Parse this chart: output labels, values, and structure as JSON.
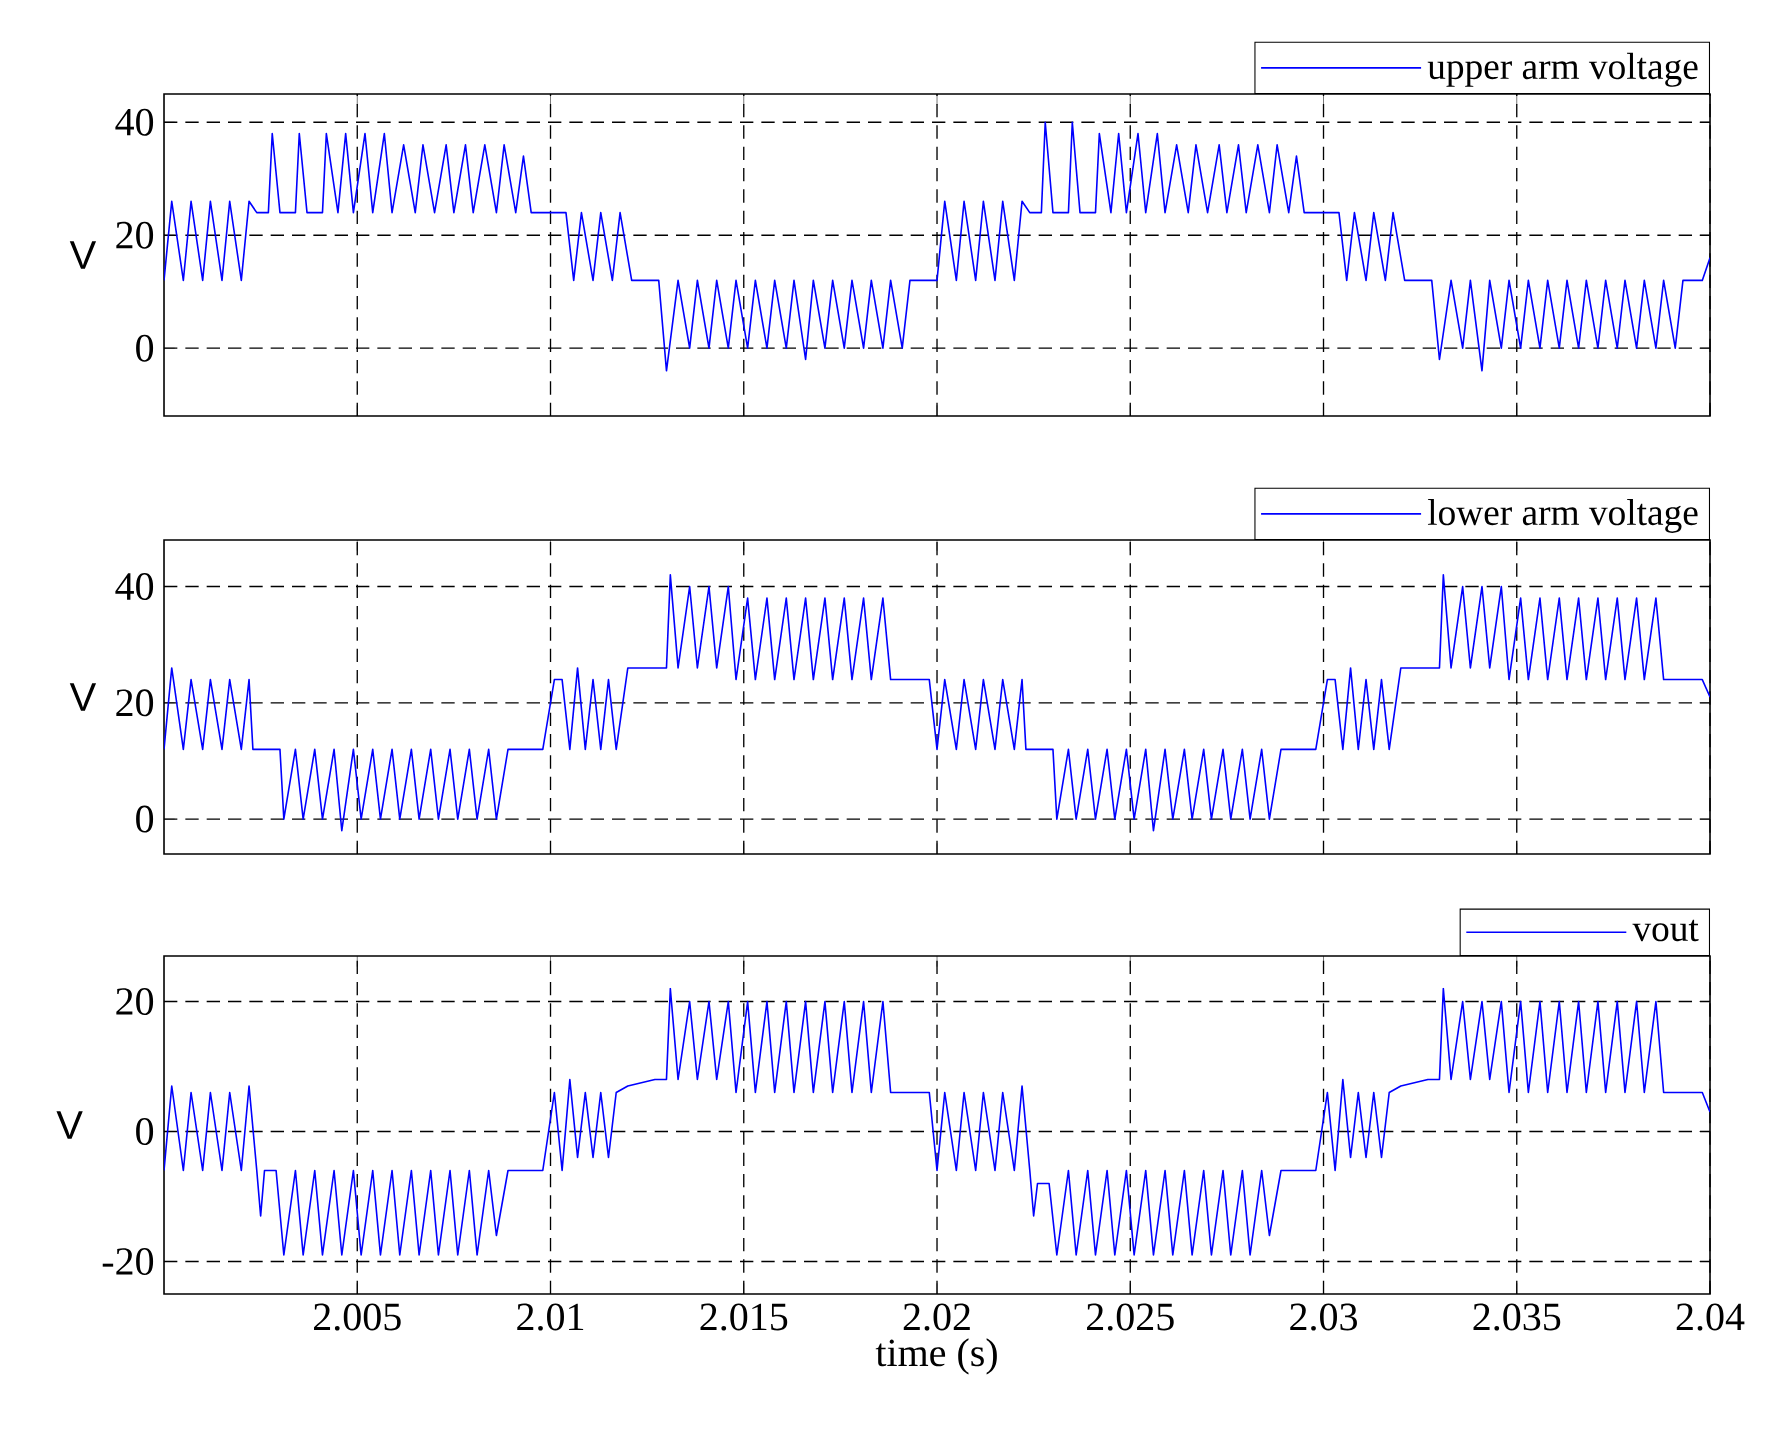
{
  "chart_data": [
    {
      "type": "line",
      "ylabel": "V",
      "grid": true,
      "legend": "top right",
      "tick_labels": "y",
      "xlim": [
        2.0,
        2.04
      ],
      "ylim": [
        -12,
        45
      ],
      "xticks": [
        2.005,
        2.01,
        2.015,
        2.02,
        2.025,
        2.03,
        2.035,
        2.04
      ],
      "yticks": [
        0,
        20,
        40
      ],
      "series": [
        {
          "name": "upper arm voltage",
          "color": "#0000ff",
          "x": [
            2.0,
            2.0002,
            2.0005,
            2.0007,
            2.001,
            2.0012,
            2.0015,
            2.0017,
            2.002,
            2.0022,
            2.0024,
            2.0027,
            2.0028,
            2.003,
            2.0034,
            2.0035,
            2.0037,
            2.0041,
            2.0042,
            2.0045,
            2.0047,
            2.0049,
            2.0052,
            2.0054,
            2.0057,
            2.0059,
            2.0062,
            2.0065,
            2.0067,
            2.007,
            2.0073,
            2.0075,
            2.0078,
            2.008,
            2.0083,
            2.0086,
            2.0088,
            2.0091,
            2.0093,
            2.0095,
            2.0097,
            2.0104,
            2.0106,
            2.0108,
            2.0111,
            2.0113,
            2.0116,
            2.0118,
            2.0121,
            2.0123,
            2.0128,
            2.013,
            2.0133,
            2.0136,
            2.0138,
            2.0141,
            2.0143,
            2.0146,
            2.0148,
            2.0151,
            2.0153,
            2.0156,
            2.0158,
            2.0161,
            2.0163,
            2.0166,
            2.0168,
            2.0171,
            2.0173,
            2.0176,
            2.0178,
            2.0181,
            2.0183,
            2.0186,
            2.0188,
            2.0191,
            2.0193,
            2.0198,
            2.02,
            2.0202,
            2.0205,
            2.0207,
            2.021,
            2.0212,
            2.0215,
            2.0217,
            2.022,
            2.0222,
            2.0224,
            2.0227,
            2.0228,
            2.023,
            2.0234,
            2.0235,
            2.0237,
            2.0241,
            2.0242,
            2.0245,
            2.0247,
            2.0249,
            2.0252,
            2.0254,
            2.0257,
            2.0259,
            2.0262,
            2.0265,
            2.0267,
            2.027,
            2.0273,
            2.0275,
            2.0278,
            2.028,
            2.0283,
            2.0286,
            2.0288,
            2.0291,
            2.0293,
            2.0295,
            2.0297,
            2.0304,
            2.0306,
            2.0308,
            2.0311,
            2.0313,
            2.0316,
            2.0318,
            2.0321,
            2.0323,
            2.0328,
            2.033,
            2.0333,
            2.0336,
            2.0338,
            2.0341,
            2.0343,
            2.0346,
            2.0348,
            2.0351,
            2.0353,
            2.0356,
            2.0358,
            2.0361,
            2.0363,
            2.0366,
            2.0368,
            2.0371,
            2.0373,
            2.0376,
            2.0378,
            2.0381,
            2.0383,
            2.0386,
            2.0388,
            2.0391,
            2.0393,
            2.0398,
            2.04
          ],
          "values": [
            12,
            26,
            12,
            26,
            12,
            26,
            12,
            26,
            12,
            26,
            24,
            24,
            38,
            24,
            24,
            38,
            24,
            24,
            38,
            24,
            38,
            24,
            38,
            24,
            38,
            24,
            36,
            24,
            36,
            24,
            36,
            24,
            36,
            24,
            36,
            24,
            36,
            24,
            34,
            24,
            24,
            24,
            12,
            24,
            12,
            24,
            12,
            24,
            12,
            12,
            12,
            -4,
            12,
            0,
            12,
            0,
            12,
            0,
            12,
            0,
            12,
            0,
            12,
            0,
            12,
            -2,
            12,
            0,
            12,
            0,
            12,
            0,
            12,
            0,
            12,
            0,
            12,
            12,
            12,
            26,
            12,
            26,
            12,
            26,
            12,
            26,
            12,
            26,
            24,
            24,
            40,
            24,
            24,
            40,
            24,
            24,
            38,
            24,
            38,
            24,
            38,
            24,
            38,
            24,
            36,
            24,
            36,
            24,
            36,
            24,
            36,
            24,
            36,
            24,
            36,
            24,
            34,
            24,
            24,
            24,
            12,
            24,
            12,
            24,
            12,
            24,
            12,
            12,
            12,
            -2,
            12,
            0,
            12,
            -4,
            12,
            0,
            12,
            0,
            12,
            0,
            12,
            0,
            12,
            0,
            12,
            0,
            12,
            0,
            12,
            0,
            12,
            0,
            12,
            0,
            12,
            12,
            16
          ]
        }
      ]
    },
    {
      "type": "line",
      "ylabel": "V",
      "grid": true,
      "legend": "top right",
      "tick_labels": "y",
      "xlim": [
        2.0,
        2.04
      ],
      "ylim": [
        -6,
        48
      ],
      "xticks": [
        2.005,
        2.01,
        2.015,
        2.02,
        2.025,
        2.03,
        2.035,
        2.04
      ],
      "yticks": [
        0,
        20,
        40
      ],
      "series": [
        {
          "name": "lower arm voltage",
          "color": "#0000ff",
          "x": [
            2.0,
            2.0002,
            2.0005,
            2.0007,
            2.001,
            2.0012,
            2.0015,
            2.0017,
            2.002,
            2.0022,
            2.0023,
            2.003,
            2.0031,
            2.0034,
            2.0036,
            2.0039,
            2.0041,
            2.0044,
            2.0046,
            2.0049,
            2.0051,
            2.0054,
            2.0056,
            2.0059,
            2.0061,
            2.0064,
            2.0066,
            2.0069,
            2.0071,
            2.0074,
            2.0076,
            2.0079,
            2.0081,
            2.0084,
            2.0086,
            2.0089,
            2.0098,
            2.0101,
            2.0103,
            2.0105,
            2.0107,
            2.0109,
            2.0111,
            2.0113,
            2.0115,
            2.0117,
            2.012,
            2.0127,
            2.013,
            2.0131,
            2.0133,
            2.0136,
            2.0138,
            2.0141,
            2.0143,
            2.0146,
            2.0148,
            2.0151,
            2.0153,
            2.0156,
            2.0158,
            2.0161,
            2.0163,
            2.0166,
            2.0168,
            2.0171,
            2.0173,
            2.0176,
            2.0178,
            2.0181,
            2.0183,
            2.0186,
            2.0188,
            2.0191,
            2.0198,
            2.02,
            2.0202,
            2.0205,
            2.0207,
            2.021,
            2.0212,
            2.0215,
            2.0217,
            2.022,
            2.0222,
            2.0223,
            2.023,
            2.0231,
            2.0234,
            2.0236,
            2.0239,
            2.0241,
            2.0244,
            2.0246,
            2.0249,
            2.0251,
            2.0254,
            2.0256,
            2.0259,
            2.0261,
            2.0264,
            2.0266,
            2.0269,
            2.0271,
            2.0274,
            2.0276,
            2.0279,
            2.0281,
            2.0284,
            2.0286,
            2.0289,
            2.0298,
            2.0301,
            2.0303,
            2.0305,
            2.0307,
            2.0309,
            2.0311,
            2.0313,
            2.0315,
            2.0317,
            2.032,
            2.0327,
            2.033,
            2.0331,
            2.0333,
            2.0336,
            2.0338,
            2.0341,
            2.0343,
            2.0346,
            2.0348,
            2.0351,
            2.0353,
            2.0356,
            2.0358,
            2.0361,
            2.0363,
            2.0366,
            2.0368,
            2.0371,
            2.0373,
            2.0376,
            2.0378,
            2.0381,
            2.0383,
            2.0386,
            2.0388,
            2.0391,
            2.0398,
            2.04
          ],
          "values": [
            12,
            26,
            12,
            24,
            12,
            24,
            12,
            24,
            12,
            24,
            12,
            12,
            0,
            12,
            0,
            12,
            0,
            12,
            -2,
            12,
            0,
            12,
            0,
            12,
            0,
            12,
            0,
            12,
            0,
            12,
            0,
            12,
            0,
            12,
            0,
            12,
            12,
            24,
            24,
            12,
            26,
            12,
            24,
            12,
            24,
            12,
            26,
            26,
            26,
            42,
            26,
            40,
            26,
            40,
            26,
            40,
            24,
            38,
            24,
            38,
            24,
            38,
            24,
            38,
            24,
            38,
            24,
            38,
            24,
            38,
            24,
            38,
            24,
            24,
            24,
            12,
            24,
            12,
            24,
            12,
            24,
            12,
            24,
            12,
            24,
            12,
            12,
            0,
            12,
            0,
            12,
            0,
            12,
            0,
            12,
            0,
            12,
            -2,
            12,
            0,
            12,
            0,
            12,
            0,
            12,
            0,
            12,
            0,
            12,
            0,
            12,
            12,
            24,
            24,
            12,
            26,
            12,
            24,
            12,
            24,
            12,
            26,
            26,
            26,
            42,
            26,
            40,
            26,
            40,
            26,
            40,
            24,
            38,
            24,
            38,
            24,
            38,
            24,
            38,
            24,
            38,
            24,
            38,
            24,
            38,
            24,
            38,
            24,
            24,
            24,
            21
          ]
        }
      ]
    },
    {
      "type": "line",
      "ylabel": "V",
      "xlabel": "time (s)",
      "grid": true,
      "legend": "top right",
      "xlim": [
        2.0,
        2.04
      ],
      "ylim": [
        -25,
        27
      ],
      "xticks": [
        2.005,
        2.01,
        2.015,
        2.02,
        2.025,
        2.03,
        2.035,
        2.04
      ],
      "yticks": [
        -20,
        0,
        20
      ],
      "series": [
        {
          "name": "vout",
          "color": "#0000ff",
          "x": [
            2.0,
            2.0002,
            2.0005,
            2.0007,
            2.001,
            2.0012,
            2.0015,
            2.0017,
            2.002,
            2.0022,
            2.0024,
            2.0025,
            2.0026,
            2.0029,
            2.0031,
            2.0034,
            2.0036,
            2.0039,
            2.0041,
            2.0044,
            2.0046,
            2.0049,
            2.0051,
            2.0054,
            2.0056,
            2.0059,
            2.0061,
            2.0064,
            2.0066,
            2.0069,
            2.0071,
            2.0074,
            2.0076,
            2.0079,
            2.0081,
            2.0084,
            2.0086,
            2.0089,
            2.0098,
            2.0101,
            2.0103,
            2.0105,
            2.0107,
            2.0109,
            2.0111,
            2.0113,
            2.0115,
            2.0117,
            2.012,
            2.0127,
            2.013,
            2.0131,
            2.0133,
            2.0136,
            2.0138,
            2.0141,
            2.0143,
            2.0146,
            2.0148,
            2.0151,
            2.0153,
            2.0156,
            2.0158,
            2.0161,
            2.0163,
            2.0166,
            2.0168,
            2.0171,
            2.0173,
            2.0176,
            2.0178,
            2.0181,
            2.0183,
            2.0186,
            2.0188,
            2.0191,
            2.0198,
            2.02,
            2.0202,
            2.0205,
            2.0207,
            2.021,
            2.0212,
            2.0215,
            2.0217,
            2.022,
            2.0222,
            2.0224,
            2.0225,
            2.0226,
            2.0229,
            2.0231,
            2.0234,
            2.0236,
            2.0239,
            2.0241,
            2.0244,
            2.0246,
            2.0249,
            2.0251,
            2.0254,
            2.0256,
            2.0259,
            2.0261,
            2.0264,
            2.0266,
            2.0269,
            2.0271,
            2.0274,
            2.0276,
            2.0279,
            2.0281,
            2.0284,
            2.0286,
            2.0289,
            2.0298,
            2.0301,
            2.0303,
            2.0305,
            2.0307,
            2.0309,
            2.0311,
            2.0313,
            2.0315,
            2.0317,
            2.032,
            2.0327,
            2.033,
            2.0331,
            2.0333,
            2.0336,
            2.0338,
            2.0341,
            2.0343,
            2.0346,
            2.0348,
            2.0351,
            2.0353,
            2.0356,
            2.0358,
            2.0361,
            2.0363,
            2.0366,
            2.0368,
            2.0371,
            2.0373,
            2.0376,
            2.0378,
            2.0381,
            2.0383,
            2.0386,
            2.0388,
            2.0391,
            2.0398,
            2.04
          ],
          "values": [
            -6,
            7,
            -6,
            6,
            -6,
            6,
            -6,
            6,
            -6,
            7,
            -6,
            -13,
            -6,
            -6,
            -19,
            -6,
            -19,
            -6,
            -19,
            -6,
            -19,
            -6,
            -19,
            -6,
            -19,
            -6,
            -19,
            -6,
            -19,
            -6,
            -19,
            -6,
            -19,
            -6,
            -19,
            -6,
            -16,
            -6,
            -6,
            6,
            -6,
            8,
            -4,
            6,
            -4,
            6,
            -4,
            6,
            7,
            8,
            8,
            22,
            8,
            20,
            8,
            20,
            8,
            20,
            6,
            20,
            6,
            20,
            6,
            20,
            6,
            20,
            6,
            20,
            6,
            20,
            6,
            20,
            6,
            20,
            6,
            6,
            6,
            -6,
            6,
            -6,
            6,
            -6,
            6,
            -6,
            6,
            -6,
            7,
            -6,
            -13,
            -8,
            -8,
            -19,
            -6,
            -19,
            -6,
            -19,
            -6,
            -19,
            -6,
            -19,
            -6,
            -19,
            -6,
            -19,
            -6,
            -19,
            -6,
            -19,
            -6,
            -19,
            -6,
            -19,
            -6,
            -16,
            -6,
            -6,
            6,
            -6,
            8,
            -4,
            6,
            -4,
            6,
            -4,
            6,
            7,
            8,
            8,
            22,
            8,
            20,
            8,
            20,
            8,
            20,
            6,
            20,
            6,
            20,
            6,
            20,
            6,
            20,
            6,
            20,
            6,
            20,
            6,
            20,
            6,
            20,
            6,
            6,
            6,
            3
          ]
        }
      ]
    }
  ]
}
